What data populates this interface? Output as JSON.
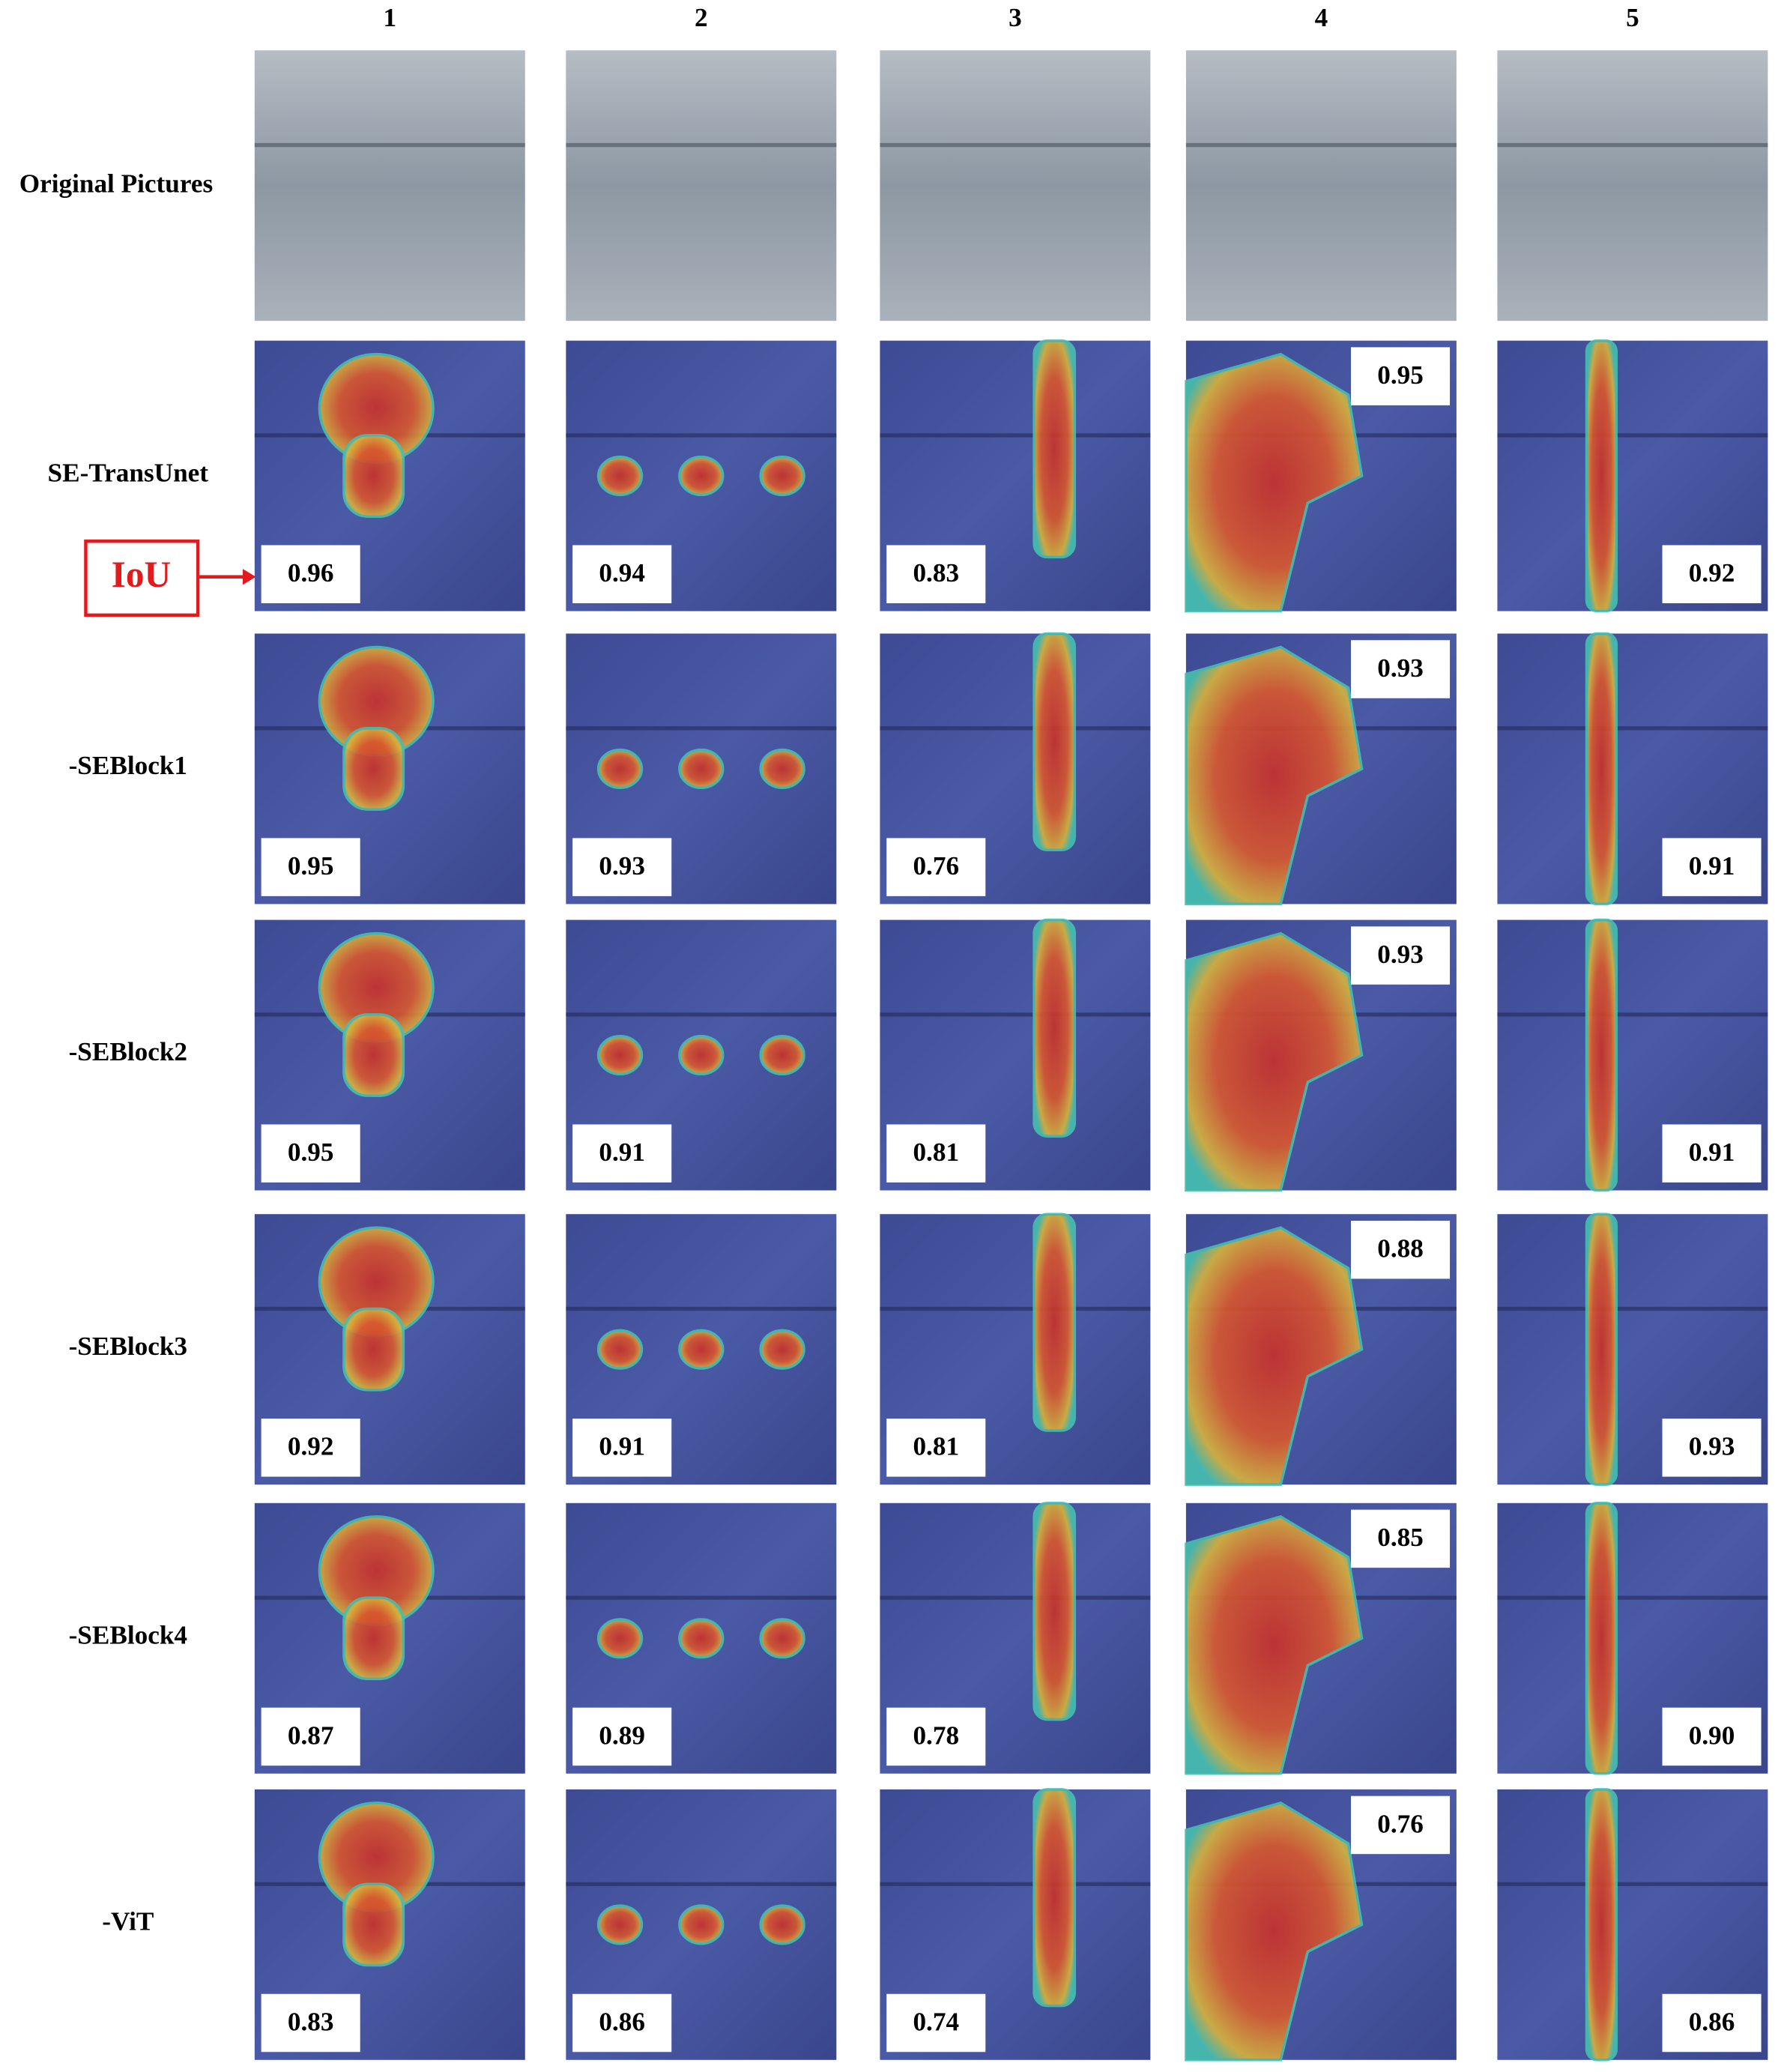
{
  "columns": [
    "1",
    "2",
    "3",
    "4",
    "5"
  ],
  "annotation": "IoU",
  "rows": [
    {
      "label": "Original Pictures"
    },
    {
      "label": "SE-TransUnet",
      "iou": [
        "0.96",
        "0.94",
        "0.83",
        "0.95",
        "0.92"
      ]
    },
    {
      "label": "-SEBlock1",
      "iou": [
        "0.95",
        "0.93",
        "0.76",
        "0.93",
        "0.91"
      ]
    },
    {
      "label": "-SEBlock2",
      "iou": [
        "0.95",
        "0.91",
        "0.81",
        "0.93",
        "0.91"
      ]
    },
    {
      "label": "-SEBlock3",
      "iou": [
        "0.92",
        "0.91",
        "0.81",
        "0.88",
        "0.93"
      ]
    },
    {
      "label": "-SEBlock4",
      "iou": [
        "0.87",
        "0.89",
        "0.78",
        "0.85",
        "0.90"
      ]
    },
    {
      "label": "-ViT",
      "iou": [
        "0.83",
        "0.86",
        "0.74",
        "0.76",
        "0.86"
      ]
    }
  ]
}
